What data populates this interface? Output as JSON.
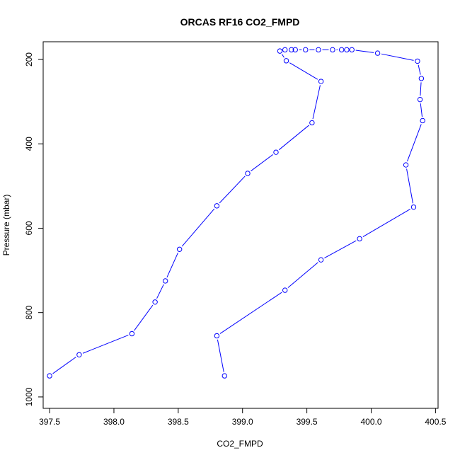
{
  "chart_data": {
    "type": "line",
    "title": "ORCAS RF16 CO2_FMPD",
    "xlabel": "CO2_FMPD",
    "ylabel": "Pressure (mbar)",
    "xlim": [
      397.45,
      400.52
    ],
    "ylim": [
      1027,
      158
    ],
    "y_reversed": true,
    "x_ticks": [
      397.5,
      398.0,
      398.5,
      399.0,
      399.5,
      400.0,
      400.5
    ],
    "x_tick_labels": [
      "397.5",
      "398.0",
      "398.5",
      "399.0",
      "399.5",
      "400.0",
      "400.5"
    ],
    "y_ticks": [
      200,
      400,
      600,
      800,
      1000
    ],
    "y_tick_labels": [
      "200",
      "400",
      "600",
      "800",
      "1000"
    ],
    "grid": false,
    "legend": "none",
    "colors": {
      "series": "#0000ff",
      "axis": "#000000",
      "background": "#ffffff"
    },
    "series": [
      {
        "points": [
          [
            397.5,
            950
          ],
          [
            397.73,
            900
          ],
          [
            398.14,
            850
          ],
          [
            398.32,
            775
          ],
          [
            398.4,
            725
          ],
          [
            398.51,
            650
          ],
          [
            398.8,
            547
          ],
          [
            399.04,
            470
          ],
          [
            399.26,
            420
          ],
          [
            399.54,
            350
          ],
          [
            399.61,
            252
          ],
          [
            399.34,
            203
          ],
          [
            399.29,
            180
          ],
          [
            399.33,
            177
          ],
          [
            399.38,
            177
          ],
          [
            399.41,
            177
          ],
          [
            399.49,
            177
          ],
          [
            399.59,
            177
          ],
          [
            399.7,
            177
          ],
          [
            399.77,
            177
          ],
          [
            399.81,
            177
          ],
          [
            399.85,
            177
          ],
          [
            400.05,
            185
          ],
          [
            400.36,
            204
          ],
          [
            400.39,
            245
          ],
          [
            400.38,
            295
          ],
          [
            400.4,
            345
          ],
          [
            400.27,
            450
          ],
          [
            400.33,
            550
          ],
          [
            399.91,
            625
          ],
          [
            399.61,
            675
          ],
          [
            399.33,
            747
          ],
          [
            398.8,
            855
          ],
          [
            398.86,
            950
          ]
        ]
      }
    ]
  }
}
